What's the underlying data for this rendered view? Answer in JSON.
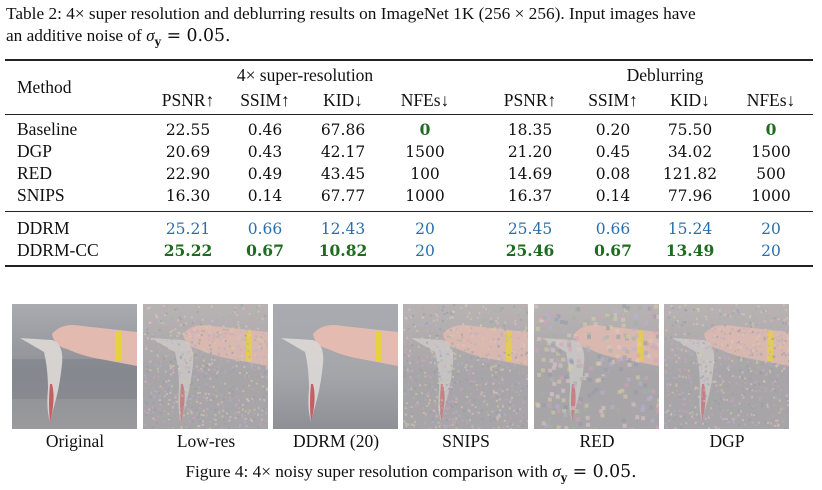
{
  "table_caption": {
    "line1": "Table 2: 4× super resolution and deblurring results on ImageNet 1K (256 × 256). Input images have",
    "line2_prefix": "an additive noise of ",
    "sigma": "σ",
    "sigma_sub": "y",
    "line2_suffix": " = 0.05."
  },
  "table": {
    "method_header": "Method",
    "groups": [
      "4× super-resolution",
      "Deblurring"
    ],
    "columns": [
      "PSNR↑",
      "SSIM↑",
      "KID↓",
      "NFEs↓",
      "PSNR↑",
      "SSIM↑",
      "KID↓",
      "NFEs↓"
    ],
    "rows": [
      {
        "method": "Baseline",
        "values": [
          "22.55",
          "0.46",
          "67.86",
          "0",
          "18.35",
          "0.20",
          "75.50",
          "0"
        ],
        "style": [
          "",
          "",
          "",
          "green",
          "",
          "",
          "",
          "green"
        ]
      },
      {
        "method": "DGP",
        "values": [
          "20.69",
          "0.43",
          "42.17",
          "1500",
          "21.20",
          "0.45",
          "34.02",
          "1500"
        ],
        "style": [
          "",
          "",
          "",
          "",
          "",
          "",
          "",
          ""
        ]
      },
      {
        "method": "RED",
        "values": [
          "22.90",
          "0.49",
          "43.45",
          "100",
          "14.69",
          "0.08",
          "121.82",
          "500"
        ],
        "style": [
          "",
          "",
          "",
          "",
          "",
          "",
          "",
          ""
        ]
      },
      {
        "method": "SNIPS",
        "values": [
          "16.30",
          "0.14",
          "67.77",
          "1000",
          "16.37",
          "0.14",
          "77.96",
          "1000"
        ],
        "style": [
          "",
          "",
          "",
          "",
          "",
          "",
          "",
          ""
        ]
      },
      {
        "method": "DDRM",
        "values": [
          "25.21",
          "0.66",
          "12.43",
          "20",
          "25.45",
          "0.66",
          "15.24",
          "20"
        ],
        "style": [
          "blue",
          "blue",
          "blue",
          "blue",
          "blue",
          "blue",
          "blue",
          "blue"
        ]
      },
      {
        "method": "DDRM-CC",
        "values": [
          "25.22",
          "0.67",
          "10.82",
          "20",
          "25.46",
          "0.67",
          "13.49",
          "20"
        ],
        "style": [
          "green",
          "green",
          "green",
          "blue",
          "green",
          "green",
          "green",
          "blue"
        ]
      }
    ]
  },
  "colors": {
    "blue": "#2a6fad",
    "green": "#1f6b1f"
  },
  "figure": {
    "images": [
      {
        "label": "Original",
        "kind": "clean"
      },
      {
        "label": "Low-res",
        "kind": "noisy"
      },
      {
        "label": "DDRM (20)",
        "kind": "smooth"
      },
      {
        "label": "SNIPS",
        "kind": "noisy2"
      },
      {
        "label": "RED",
        "kind": "blotchy"
      },
      {
        "label": "DGP",
        "kind": "artifact"
      }
    ],
    "caption_prefix": "Figure 4: 4× noisy super resolution comparison with ",
    "sigma": "σ",
    "sigma_sub": "y",
    "caption_suffix": " = 0.05."
  }
}
